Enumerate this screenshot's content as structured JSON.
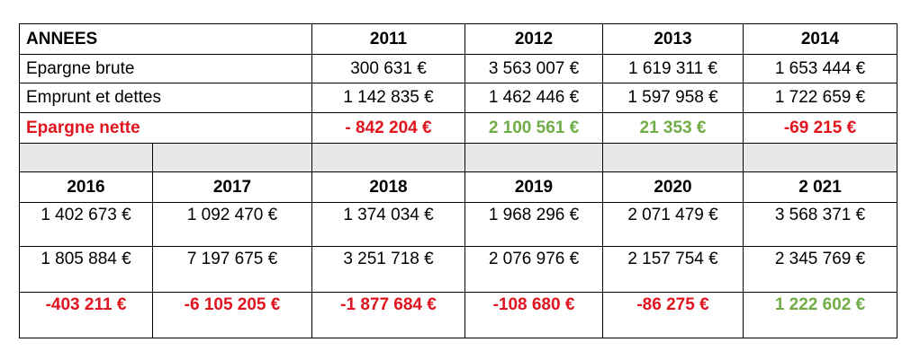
{
  "header": {
    "label": "ANNEES",
    "years": [
      "2011",
      "2012",
      "2013",
      "2014"
    ]
  },
  "top_rows": [
    {
      "label": "Epargne brute",
      "values": [
        "300 631 €",
        "3 563 007 €",
        "1 619 311 €",
        "1 653 444 €"
      ]
    },
    {
      "label": "Emprunt et dettes",
      "values": [
        "1 142 835 €",
        "1 462 446 €",
        "1 597 958 €",
        "1 722 659 €"
      ]
    },
    {
      "label": "Epargne nette",
      "values": [
        "- 842 204 €",
        "2 100 561 €",
        "21 353 €",
        "-69 215 €"
      ]
    }
  ],
  "lower_years": [
    "2016",
    "2017",
    "2018",
    "2019",
    "2020",
    "2 021"
  ],
  "lower_rows": [
    {
      "values": [
        "1 402 673 €",
        "1 092 470 €",
        "1 374 034 €",
        "1 968 296 €",
        "2 071 479 €",
        "3 568 371 €"
      ]
    },
    {
      "values": [
        "1 805 884 €",
        "7 197 675 €",
        "3 251 718 €",
        "2 076 976 €",
        "2 157 754 €",
        "2 345 769 €"
      ]
    },
    {
      "values": [
        "-403 211 €",
        "-6 105 205 €",
        "-1 877 684 €",
        "-108 680 €",
        "-86 275 €",
        "1 222 602 €"
      ]
    }
  ],
  "colors": {
    "negative": "#e0141e",
    "positive": "#70ad47",
    "separator": "#e7e7e7"
  }
}
